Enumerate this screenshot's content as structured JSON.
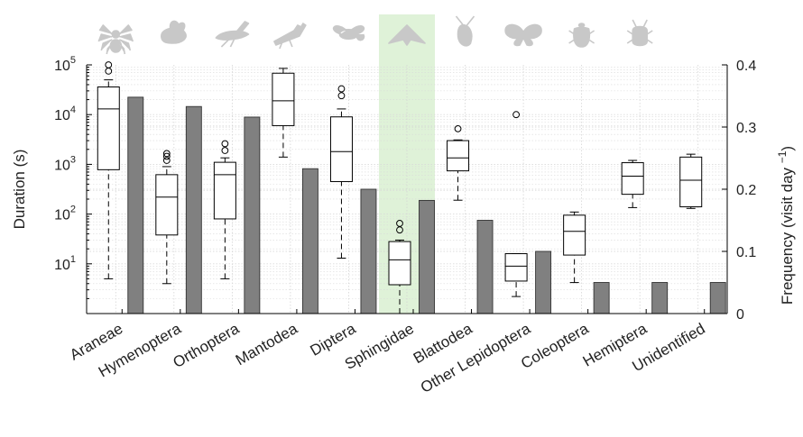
{
  "chart_data": {
    "type": "bar",
    "categories": [
      "Araneae",
      "Hymenoptera",
      "Orthoptera",
      "Mantodea",
      "Diptera",
      "Sphingidae",
      "Blattodea",
      "Other Lepidoptera",
      "Coleoptera",
      "Hemiptera",
      "Unidentified"
    ],
    "highlighted_category": "Sphingidae",
    "icons": [
      "spider-icon",
      "bee-icon",
      "grasshopper-icon",
      "mantis-icon",
      "fly-icon",
      "moth-icon",
      "cockroach-icon",
      "butterfly-icon",
      "beetle-icon",
      "bug-icon",
      ""
    ],
    "left_axis": {
      "label": "Duration (s)",
      "scale": "log",
      "ylim": [
        1,
        100000
      ],
      "ticks": [
        {
          "value": 10,
          "base": "10",
          "exp": "1"
        },
        {
          "value": 100,
          "base": "10",
          "exp": "2"
        },
        {
          "value": 1000,
          "base": "10",
          "exp": "3"
        },
        {
          "value": 10000,
          "base": "10",
          "exp": "4"
        },
        {
          "value": 100000,
          "base": "10",
          "exp": "5"
        }
      ]
    },
    "right_axis": {
      "label": "Frequency (visit day",
      "label_sup": "−1",
      "label_close": ")",
      "ylim": [
        0,
        0.4
      ],
      "ticks": [
        "0",
        "0.1",
        "0.2",
        "0.3",
        "0.4"
      ]
    },
    "series": [
      {
        "kind": "boxplot",
        "axis": "left",
        "boxes": [
          {
            "whislo": 5,
            "q1": 780,
            "med": 13000,
            "q3": 36000,
            "whishi": 50000,
            "fliers": [
              75000,
              100000
            ]
          },
          {
            "whislo": 4,
            "q1": 38,
            "med": 220,
            "q3": 620,
            "whishi": 900,
            "fliers": [
              1200,
              1450,
              1650
            ]
          },
          {
            "whislo": 5,
            "q1": 80,
            "med": 620,
            "q3": 1100,
            "whishi": 1350,
            "fliers": [
              1900,
              2600
            ]
          },
          {
            "whislo": 1400,
            "q1": 6000,
            "med": 19000,
            "q3": 68000,
            "whishi": 85000,
            "fliers": []
          },
          {
            "whislo": 13,
            "q1": 450,
            "med": 1800,
            "q3": 9000,
            "whishi": 13000,
            "fliers": [
              24000,
              33000
            ]
          },
          {
            "whislo": 1,
            "q1": 3.8,
            "med": 12,
            "q3": 28,
            "whishi": 30,
            "fliers": [
              48,
              65
            ]
          },
          {
            "whislo": 190,
            "q1": 740,
            "med": 1350,
            "q3": 3000,
            "whishi": 3100,
            "fliers": [
              5200
            ]
          },
          {
            "whislo": 2.2,
            "q1": 4.5,
            "med": 9,
            "q3": 16,
            "whishi": 16,
            "fliers": [
              10000
            ]
          },
          {
            "whislo": 4.2,
            "q1": 15,
            "med": 45,
            "q3": 95,
            "whishi": 110,
            "fliers": []
          },
          {
            "whislo": 135,
            "q1": 250,
            "med": 580,
            "q3": 1080,
            "whishi": 1200,
            "fliers": []
          },
          {
            "whislo": 130,
            "q1": 140,
            "med": 480,
            "q3": 1400,
            "whishi": 1600,
            "fliers": []
          }
        ]
      },
      {
        "kind": "bar",
        "axis": "right",
        "values": [
          0.348,
          0.333,
          0.316,
          0.233,
          0.2,
          0.182,
          0.15,
          0.1,
          0.05,
          0.05,
          0.05
        ]
      }
    ],
    "grid": true
  }
}
